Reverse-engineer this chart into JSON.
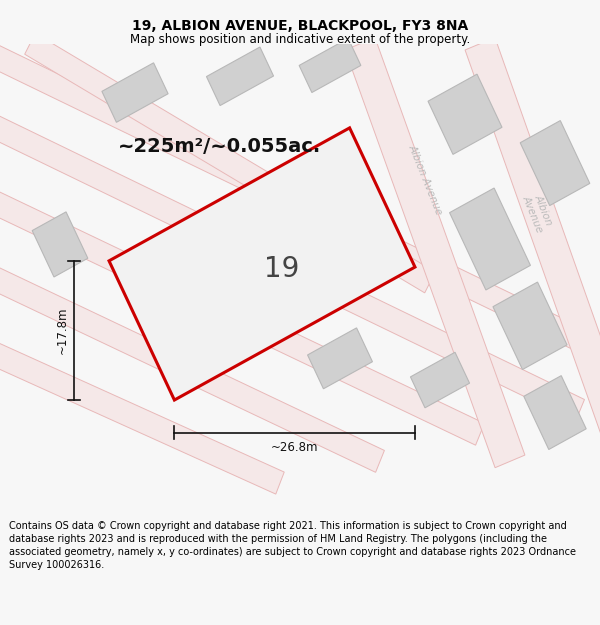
{
  "title": "19, ALBION AVENUE, BLACKPOOL, FY3 8NA",
  "subtitle": "Map shows position and indicative extent of the property.",
  "footer": "Contains OS data © Crown copyright and database right 2021. This information is subject to Crown copyright and database rights 2023 and is reproduced with the permission of HM Land Registry. The polygons (including the associated geometry, namely x, y co-ordinates) are subject to Crown copyright and database rights 2023 Ordnance Survey 100026316.",
  "area_label": "~225m²/~0.055ac.",
  "plot_number": "19",
  "width_label": "~26.8m",
  "height_label": "~17.8m",
  "road_edge_color": "#e8b8b8",
  "road_fill_color": "#f5e8e8",
  "building_fill": "#d0d0d0",
  "building_edge": "#bbbbbb",
  "plot_edge_color": "#cc0000",
  "plot_fill_color": "#f2f2f2",
  "dim_color": "#111111",
  "road_label_color": "#bbbbbb",
  "map_bg": "#ffffff",
  "fig_bg": "#f7f7f7",
  "title_fontsize": 10,
  "subtitle_fontsize": 8.5,
  "footer_fontsize": 7.0,
  "area_fontsize": 14,
  "number_fontsize": 20,
  "dim_fontsize": 8.5,
  "road_label_fontsize": 7.5
}
